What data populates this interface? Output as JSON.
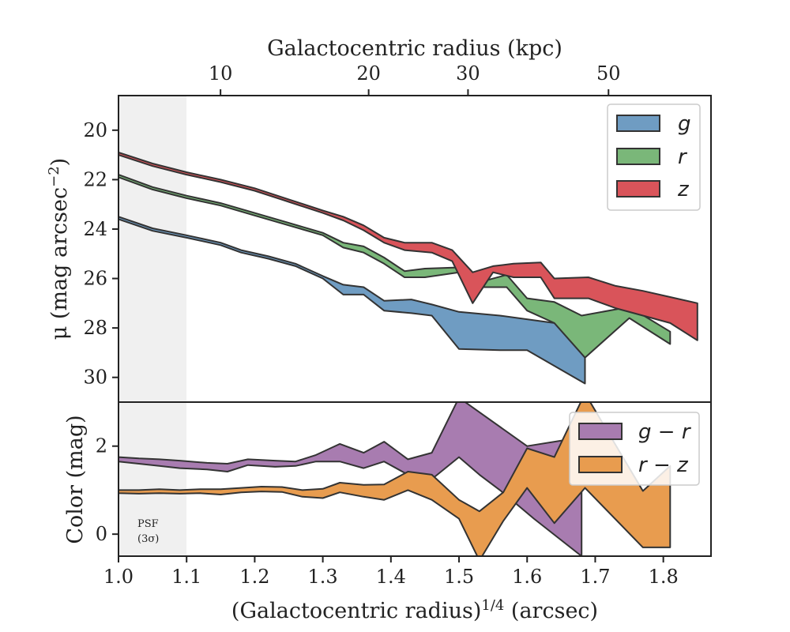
{
  "chart_data": [
    {
      "type": "area",
      "panel": "top",
      "top_xlabel": "Galactocentric radius (kpc)",
      "top_ticks": [
        {
          "value": 10,
          "label": "10",
          "x14": 1.1498
        },
        {
          "value": 20,
          "label": "20",
          "x14": 1.3673
        },
        {
          "value": 30,
          "label": "30",
          "x14": 1.5132
        },
        {
          "value": 50,
          "label": "50",
          "x14": 1.7195
        }
      ],
      "ylabel": "μ (mag arcsec",
      "ylabel_sup": "−2",
      "ylabel_tail": ")",
      "xlim": [
        1.0,
        1.87
      ],
      "ylim": [
        31.0,
        18.6
      ],
      "y_ticks": [
        20,
        22,
        24,
        26,
        28,
        30
      ],
      "y_inverted": true,
      "legend_position": "top-right",
      "series": [
        {
          "name": "g",
          "color": "#6f9cc2",
          "upper": [
            [
              1.0,
              23.5
            ],
            [
              1.05,
              23.97
            ],
            [
              1.1,
              24.25
            ],
            [
              1.15,
              24.55
            ],
            [
              1.18,
              24.85
            ],
            [
              1.22,
              25.1
            ],
            [
              1.26,
              25.4
            ],
            [
              1.3,
              25.9
            ],
            [
              1.33,
              26.25
            ],
            [
              1.36,
              26.35
            ],
            [
              1.39,
              26.9
            ],
            [
              1.43,
              26.85
            ],
            [
              1.46,
              27.05
            ],
            [
              1.5,
              27.35
            ],
            [
              1.56,
              27.5
            ],
            [
              1.64,
              27.8
            ],
            [
              1.685,
              27.95
            ]
          ],
          "lower": [
            [
              1.0,
              23.6
            ],
            [
              1.05,
              24.07
            ],
            [
              1.1,
              24.35
            ],
            [
              1.15,
              24.65
            ],
            [
              1.18,
              24.95
            ],
            [
              1.22,
              25.2
            ],
            [
              1.26,
              25.5
            ],
            [
              1.3,
              26.0
            ],
            [
              1.33,
              26.65
            ],
            [
              1.36,
              26.65
            ],
            [
              1.39,
              27.3
            ],
            [
              1.43,
              27.4
            ],
            [
              1.46,
              27.5
            ],
            [
              1.5,
              28.85
            ],
            [
              1.56,
              28.9
            ],
            [
              1.6,
              28.9
            ],
            [
              1.685,
              30.25
            ]
          ]
        },
        {
          "name": "r",
          "color": "#7ab779",
          "upper": [
            [
              1.0,
              21.8
            ],
            [
              1.05,
              22.3
            ],
            [
              1.1,
              22.65
            ],
            [
              1.15,
              22.95
            ],
            [
              1.2,
              23.35
            ],
            [
              1.25,
              23.75
            ],
            [
              1.3,
              24.15
            ],
            [
              1.33,
              24.55
            ],
            [
              1.36,
              24.7
            ],
            [
              1.39,
              25.15
            ],
            [
              1.42,
              25.7
            ],
            [
              1.45,
              25.6
            ],
            [
              1.5,
              25.55
            ],
            [
              1.53,
              26.15
            ],
            [
              1.57,
              25.85
            ],
            [
              1.6,
              26.8
            ],
            [
              1.64,
              26.95
            ],
            [
              1.68,
              27.5
            ],
            [
              1.75,
              27.15
            ],
            [
              1.81,
              28.15
            ]
          ],
          "lower": [
            [
              1.0,
              21.9
            ],
            [
              1.05,
              22.4
            ],
            [
              1.1,
              22.75
            ],
            [
              1.15,
              23.05
            ],
            [
              1.2,
              23.45
            ],
            [
              1.25,
              23.85
            ],
            [
              1.3,
              24.25
            ],
            [
              1.33,
              24.75
            ],
            [
              1.36,
              24.95
            ],
            [
              1.39,
              25.4
            ],
            [
              1.42,
              25.95
            ],
            [
              1.45,
              25.95
            ],
            [
              1.5,
              25.75
            ],
            [
              1.53,
              26.35
            ],
            [
              1.57,
              26.35
            ],
            [
              1.6,
              27.3
            ],
            [
              1.64,
              27.8
            ],
            [
              1.685,
              29.2
            ],
            [
              1.75,
              27.6
            ],
            [
              1.81,
              28.65
            ]
          ]
        },
        {
          "name": "z",
          "color": "#d9545a",
          "upper": [
            [
              1.0,
              20.9
            ],
            [
              1.05,
              21.35
            ],
            [
              1.1,
              21.7
            ],
            [
              1.15,
              22.0
            ],
            [
              1.2,
              22.35
            ],
            [
              1.25,
              22.8
            ],
            [
              1.3,
              23.25
            ],
            [
              1.33,
              23.5
            ],
            [
              1.36,
              23.85
            ],
            [
              1.39,
              24.35
            ],
            [
              1.42,
              24.55
            ],
            [
              1.46,
              24.55
            ],
            [
              1.49,
              24.85
            ],
            [
              1.52,
              25.75
            ],
            [
              1.55,
              25.5
            ],
            [
              1.58,
              25.4
            ],
            [
              1.62,
              25.35
            ],
            [
              1.64,
              26.0
            ],
            [
              1.69,
              25.95
            ],
            [
              1.73,
              26.3
            ],
            [
              1.77,
              26.5
            ],
            [
              1.81,
              26.75
            ],
            [
              1.85,
              27.0
            ]
          ],
          "lower": [
            [
              1.0,
              21.0
            ],
            [
              1.05,
              21.45
            ],
            [
              1.1,
              21.8
            ],
            [
              1.15,
              22.1
            ],
            [
              1.2,
              22.45
            ],
            [
              1.25,
              22.9
            ],
            [
              1.3,
              23.35
            ],
            [
              1.33,
              23.65
            ],
            [
              1.36,
              24.05
            ],
            [
              1.39,
              24.55
            ],
            [
              1.42,
              24.85
            ],
            [
              1.46,
              24.95
            ],
            [
              1.49,
              25.3
            ],
            [
              1.52,
              27.0
            ],
            [
              1.55,
              25.75
            ],
            [
              1.58,
              25.95
            ],
            [
              1.62,
              25.95
            ],
            [
              1.64,
              26.8
            ],
            [
              1.69,
              26.8
            ],
            [
              1.73,
              27.2
            ],
            [
              1.77,
              27.5
            ],
            [
              1.81,
              27.8
            ],
            [
              1.85,
              28.5
            ]
          ]
        }
      ]
    },
    {
      "type": "area",
      "panel": "bottom",
      "xlabel": "(Galactocentric radius)",
      "xlabel_sup": "1/4",
      "xlabel_tail": " (arcsec)",
      "ylabel": "Color (mag)",
      "xlim": [
        1.0,
        1.87
      ],
      "ylim": [
        -0.5,
        3.0
      ],
      "x_ticks": [
        1.0,
        1.1,
        1.2,
        1.3,
        1.4,
        1.5,
        1.6,
        1.7,
        1.8
      ],
      "x_tick_labels": [
        "1.0",
        "1.1",
        "1.2",
        "1.3",
        "1.4",
        "1.5",
        "1.6",
        "1.7",
        "1.8"
      ],
      "y_ticks": [
        0,
        2
      ],
      "legend_position": "top-right",
      "series": [
        {
          "name": "g − r",
          "color": "#a87cb0",
          "upper": [
            [
              1.0,
              1.75
            ],
            [
              1.03,
              1.72
            ],
            [
              1.06,
              1.7
            ],
            [
              1.09,
              1.67
            ],
            [
              1.13,
              1.62
            ],
            [
              1.16,
              1.6
            ],
            [
              1.19,
              1.7
            ],
            [
              1.23,
              1.67
            ],
            [
              1.26,
              1.65
            ],
            [
              1.29,
              1.8
            ],
            [
              1.325,
              2.05
            ],
            [
              1.36,
              1.85
            ],
            [
              1.39,
              2.1
            ],
            [
              1.425,
              1.7
            ],
            [
              1.46,
              1.85
            ],
            [
              1.5,
              3.1
            ],
            [
              1.6,
              2.0
            ],
            [
              1.68,
              2.2
            ]
          ],
          "lower": [
            [
              1.0,
              1.65
            ],
            [
              1.03,
              1.6
            ],
            [
              1.06,
              1.55
            ],
            [
              1.09,
              1.5
            ],
            [
              1.13,
              1.47
            ],
            [
              1.16,
              1.42
            ],
            [
              1.19,
              1.57
            ],
            [
              1.23,
              1.53
            ],
            [
              1.26,
              1.55
            ],
            [
              1.29,
              1.65
            ],
            [
              1.325,
              1.65
            ],
            [
              1.36,
              1.5
            ],
            [
              1.39,
              1.65
            ],
            [
              1.425,
              1.35
            ],
            [
              1.46,
              1.25
            ],
            [
              1.5,
              1.75
            ],
            [
              1.53,
              1.35
            ],
            [
              1.56,
              1.0
            ],
            [
              1.61,
              0.35
            ],
            [
              1.68,
              -0.5
            ]
          ]
        },
        {
          "name": "r − z",
          "color": "#e89c4f",
          "upper": [
            [
              1.0,
              1.0
            ],
            [
              1.03,
              1.0
            ],
            [
              1.06,
              1.02
            ],
            [
              1.09,
              1.0
            ],
            [
              1.12,
              1.02
            ],
            [
              1.15,
              1.02
            ],
            [
              1.18,
              1.05
            ],
            [
              1.21,
              1.08
            ],
            [
              1.24,
              1.07
            ],
            [
              1.27,
              1.0
            ],
            [
              1.3,
              1.03
            ],
            [
              1.325,
              1.17
            ],
            [
              1.36,
              1.12
            ],
            [
              1.39,
              1.13
            ],
            [
              1.425,
              1.42
            ],
            [
              1.46,
              1.35
            ],
            [
              1.5,
              0.78
            ],
            [
              1.53,
              0.52
            ],
            [
              1.565,
              0.95
            ],
            [
              1.6,
              1.95
            ],
            [
              1.64,
              1.75
            ],
            [
              1.685,
              3.2
            ],
            [
              1.77,
              0.98
            ],
            [
              1.81,
              1.55
            ]
          ],
          "lower": [
            [
              1.0,
              0.93
            ],
            [
              1.03,
              0.92
            ],
            [
              1.06,
              0.93
            ],
            [
              1.09,
              0.92
            ],
            [
              1.12,
              0.93
            ],
            [
              1.15,
              0.9
            ],
            [
              1.18,
              0.95
            ],
            [
              1.21,
              0.97
            ],
            [
              1.24,
              0.96
            ],
            [
              1.27,
              0.85
            ],
            [
              1.3,
              0.82
            ],
            [
              1.325,
              0.95
            ],
            [
              1.36,
              0.85
            ],
            [
              1.39,
              0.78
            ],
            [
              1.425,
              1.0
            ],
            [
              1.46,
              0.78
            ],
            [
              1.5,
              0.35
            ],
            [
              1.53,
              -0.6
            ],
            [
              1.565,
              0.3
            ],
            [
              1.6,
              1.05
            ],
            [
              1.64,
              0.25
            ],
            [
              1.685,
              1.05
            ],
            [
              1.77,
              -0.3
            ],
            [
              1.81,
              -0.3
            ]
          ]
        }
      ],
      "psf_label_line1": "PSF",
      "psf_label_line2": "(3σ)"
    }
  ]
}
